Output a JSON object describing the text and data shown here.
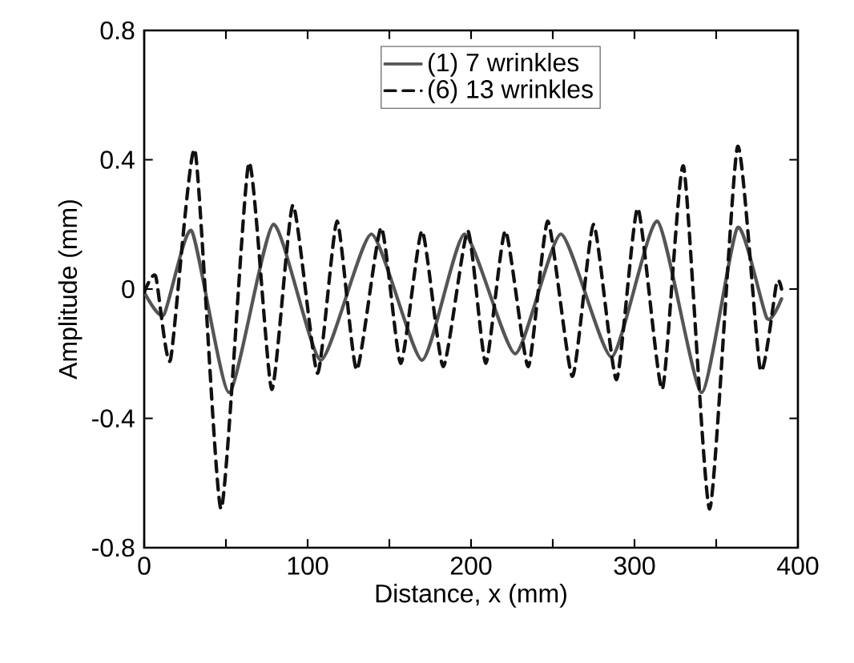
{
  "chart_data": {
    "type": "line",
    "xlabel": "Distance, x (mm)",
    "ylabel": "Amplitude (mm)",
    "xlim": [
      0,
      400
    ],
    "ylim": [
      -0.8,
      0.8
    ],
    "xticks": [
      0,
      {
        "value": 50,
        "label": null
      },
      100,
      {
        "value": 150,
        "label": null
      },
      200,
      {
        "value": 250,
        "label": null
      },
      300,
      {
        "value": 350,
        "label": null
      },
      400
    ],
    "yticks": [
      -0.8,
      -0.4,
      0,
      0.4,
      0.8
    ],
    "legend": "top",
    "grid": false,
    "marker": "none",
    "series": [
      {
        "name": "(1) 7 wrinkles",
        "color": "#555555",
        "line_style": "solid",
        "x": [
          0,
          12,
          29,
          52,
          79,
          108,
          139,
          170,
          196,
          227,
          255,
          286,
          314,
          341,
          363,
          381,
          390
        ],
        "values": [
          -0.01,
          -0.08,
          0.18,
          -0.32,
          0.2,
          -0.22,
          0.17,
          -0.22,
          0.17,
          -0.2,
          0.17,
          -0.21,
          0.21,
          -0.32,
          0.19,
          -0.09,
          -0.03
        ]
      },
      {
        "name": "(6) 13 wrinkles",
        "color": "#111111",
        "line_style": "dashed",
        "x": [
          0,
          7,
          16,
          31,
          47,
          64,
          78,
          91,
          106,
          118,
          130,
          145,
          157,
          170,
          183,
          198,
          209,
          221,
          235,
          247,
          262,
          275,
          289,
          302,
          317,
          330,
          346,
          363,
          377,
          387,
          390
        ],
        "values": [
          -0.01,
          0.04,
          -0.22,
          0.43,
          -0.68,
          0.39,
          -0.31,
          0.26,
          -0.26,
          0.21,
          -0.25,
          0.19,
          -0.23,
          0.18,
          -0.24,
          0.18,
          -0.23,
          0.18,
          -0.24,
          0.21,
          -0.27,
          0.2,
          -0.28,
          0.25,
          -0.31,
          0.38,
          -0.68,
          0.44,
          -0.25,
          0.02,
          0.0
        ]
      }
    ]
  }
}
